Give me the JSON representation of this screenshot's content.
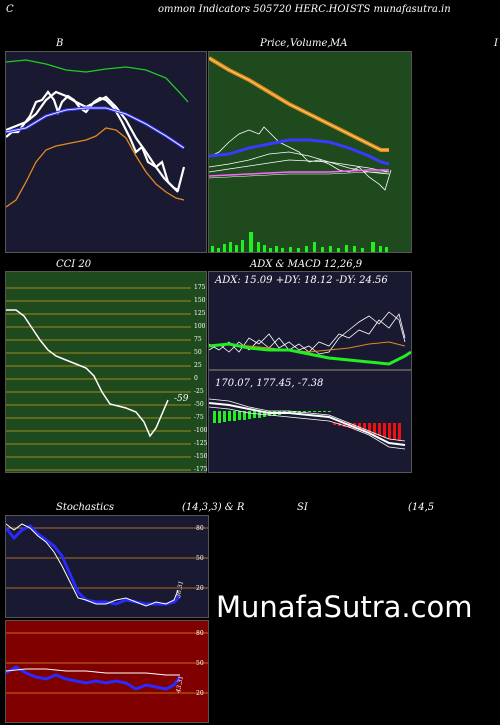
{
  "header": {
    "left": "C",
    "center": "ommon  Indicators 505720  HERC.HOI",
    "right": "STS munafasutra.in"
  },
  "panels": {
    "bollinger": {
      "title": "B"
    },
    "price": {
      "title": "Price,",
      "title2": "Volume,",
      "title3": "MA"
    },
    "extra": {
      "title": "I"
    },
    "cci": {
      "title": "CCI 20",
      "value": "-59",
      "ticks": [
        "175",
        "150",
        "125",
        "100",
        "75",
        "50",
        "25",
        "0",
        "-25",
        "-50",
        "-75",
        "-100",
        "-125",
        "-150",
        "-175"
      ]
    },
    "adx": {
      "title": "ADX  & MACD 12,26,9",
      "readout": "ADX: 15.09  +DY: 18.12  -DY: 24.56"
    },
    "macd": {
      "readout": "170.07,  177.45,  -7.38"
    },
    "stochastics": {
      "title": "Stochastics",
      "params": "(14,3,3) & R",
      "rsi_label": "SI",
      "rsi_params": "(14,5",
      "ticks": [
        "80",
        "50",
        "20"
      ],
      "value": "36.31"
    },
    "rsi": {
      "ticks": [
        "80",
        "50",
        "20"
      ],
      "value": "43.31"
    }
  },
  "watermark": "MunafaSutra.com",
  "colors": {
    "navy": "#191932",
    "green": "#1e4a1e",
    "darkred": "#800000",
    "orange": "#e08a1e",
    "blue": "#2a2aff",
    "lime": "#22ee22",
    "red": "#ee1111"
  }
}
